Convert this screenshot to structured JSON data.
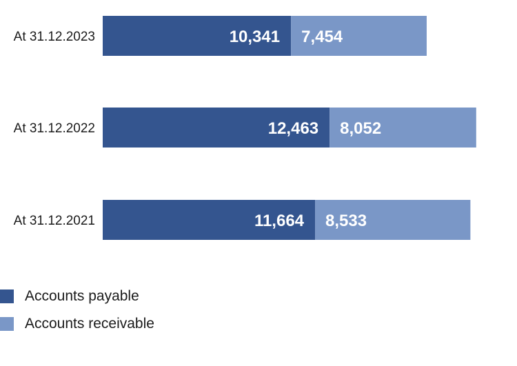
{
  "chart_data": {
    "type": "bar",
    "orientation": "horizontal",
    "stacked": true,
    "categories": [
      "At 31.12.2023",
      "At 31.12.2022",
      "At 31.12.2021"
    ],
    "series": [
      {
        "name": "Accounts payable",
        "color": "#34558f",
        "values": [
          10341,
          12463,
          11664
        ],
        "value_labels": [
          "10,341",
          "12,463",
          "11,664"
        ]
      },
      {
        "name": "Accounts receivable",
        "color": "#7a97c7",
        "values": [
          7454,
          8052,
          8533
        ],
        "value_labels": [
          "7,454",
          "8,052",
          "8,533"
        ]
      }
    ],
    "title": "",
    "xlabel": "",
    "ylabel": "",
    "grid": false,
    "legend_position": "bottom-left"
  }
}
